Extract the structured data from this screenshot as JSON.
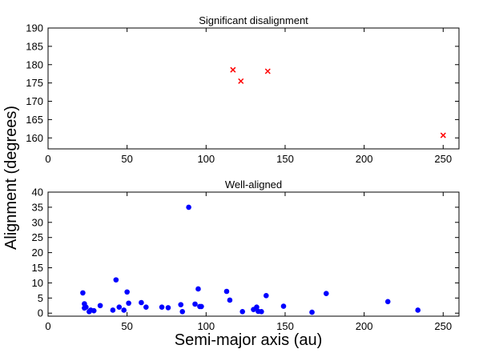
{
  "figure": {
    "shared_ylabel": "Alignment (degrees)",
    "shared_xlabel": "Semi-major axis (au)"
  },
  "chart_data": [
    {
      "type": "scatter",
      "title": "Significant disalignment",
      "xlabel": "",
      "ylabel": "",
      "xlim": [
        0,
        260
      ],
      "ylim": [
        157,
        190
      ],
      "xticks": [
        0,
        50,
        100,
        150,
        200,
        250
      ],
      "yticks": [
        160,
        165,
        170,
        175,
        180,
        185,
        190
      ],
      "grid": false,
      "marker": "x",
      "color": "#ff0000",
      "series": [
        {
          "x": [
            117,
            122,
            139,
            250
          ],
          "y": [
            178.6,
            175.5,
            178.2,
            160.7
          ]
        }
      ]
    },
    {
      "type": "scatter",
      "title": "Well-aligned",
      "xlabel": "Semi-major axis (au)",
      "ylabel": "",
      "xlim": [
        0,
        260
      ],
      "ylim": [
        -1,
        40
      ],
      "xticks": [
        0,
        50,
        100,
        150,
        200,
        250
      ],
      "yticks": [
        0,
        5,
        10,
        15,
        20,
        25,
        30,
        35,
        40
      ],
      "grid": false,
      "marker": "o",
      "color": "#0000ff",
      "series": [
        {
          "x": [
            22,
            23,
            23,
            24,
            26,
            27,
            29,
            33,
            41,
            43,
            45,
            48,
            50,
            51,
            59,
            62,
            72,
            76,
            84,
            85,
            89,
            93,
            95,
            96,
            97,
            113,
            115,
            123,
            130,
            132,
            133,
            135,
            138,
            149,
            167,
            176,
            215,
            234
          ],
          "y": [
            6.7,
            3.1,
            1.7,
            2.0,
            0.5,
            1.0,
            0.8,
            2.5,
            1.0,
            11.0,
            2.0,
            1.0,
            7.0,
            3.3,
            3.5,
            2.0,
            2.0,
            1.8,
            2.8,
            0.5,
            35.0,
            3.0,
            8.0,
            2.2,
            2.2,
            7.2,
            4.3,
            0.5,
            1.2,
            2.0,
            0.6,
            0.5,
            5.8,
            2.3,
            0.3,
            6.5,
            3.8,
            1.0
          ]
        }
      ]
    }
  ]
}
